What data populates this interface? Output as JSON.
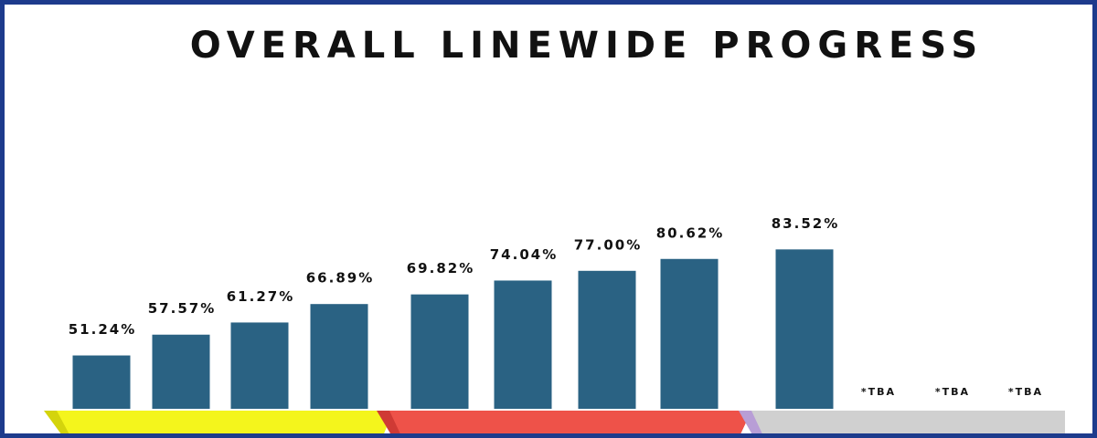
{
  "chart_data": {
    "type": "bar",
    "title": "OVERALL LINEWIDE PROGRESS",
    "categories": [
      null,
      null,
      null,
      null,
      null,
      null,
      null,
      null,
      null,
      null,
      null,
      null
    ],
    "values": [
      51.24,
      57.57,
      61.27,
      66.89,
      69.82,
      74.04,
      77.0,
      80.62,
      83.52,
      null,
      null,
      null
    ],
    "value_labels": [
      "51.24%",
      "57.57%",
      "61.27%",
      "66.89%",
      "69.82%",
      "74.04%",
      "77.00%",
      "80.62%",
      "83.52%",
      "*TBA",
      "*TBA",
      "*TBA"
    ],
    "color": "#2a6283",
    "ylim": [
      35,
      90
    ]
  }
}
